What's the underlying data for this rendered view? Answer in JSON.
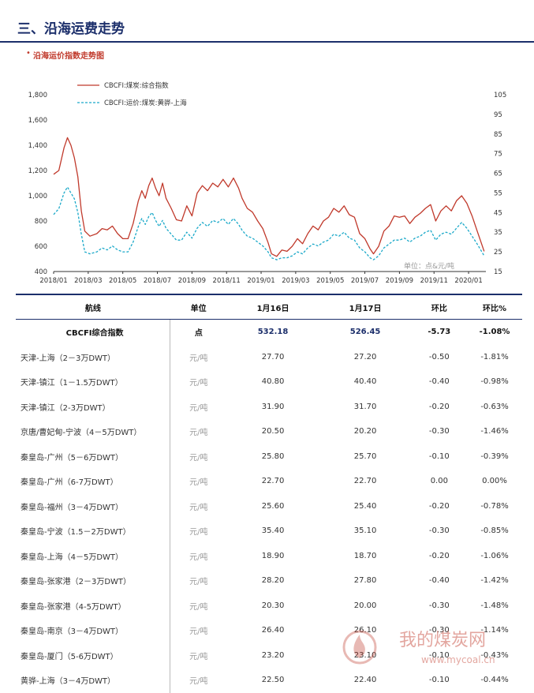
{
  "heading": "三、沿海运费走势",
  "subheading": "沿海运价指数走势图",
  "chart_data": {
    "type": "line",
    "x": [
      "2018/01",
      "2018/03",
      "2018/05",
      "2018/07",
      "2018/09",
      "2018/11",
      "2019/01",
      "2019/03",
      "2019/05",
      "2019/07",
      "2019/09",
      "2019/11",
      "2020/01"
    ],
    "xlim": [
      "2018/01",
      "2020/01"
    ],
    "ylim_left": [
      400,
      1800
    ],
    "yticks_left": [
      "400",
      "600",
      "800",
      "1,000",
      "1,200",
      "1,400",
      "1,600",
      "1,800"
    ],
    "ylim_right": [
      15,
      105
    ],
    "yticks_right": [
      "15",
      "25",
      "35",
      "45",
      "55",
      "65",
      "75",
      "85",
      "95",
      "105"
    ],
    "xticks": [
      "2018/01",
      "2018/03",
      "2018/05",
      "2018/07",
      "2018/09",
      "2018/11",
      "2019/01",
      "2019/03",
      "2019/05",
      "2019/07",
      "2019/09",
      "2019/11",
      "2020/01"
    ],
    "annotation": "单位：点&元/吨",
    "series": [
      {
        "name": "CBCFI:煤炭:综合指数",
        "axis": "left",
        "color": "#c0392b",
        "style": "solid",
        "points": [
          [
            0,
            1170
          ],
          [
            0.3,
            1200
          ],
          [
            0.6,
            1380
          ],
          [
            0.8,
            1460
          ],
          [
            1.0,
            1400
          ],
          [
            1.2,
            1300
          ],
          [
            1.4,
            1150
          ],
          [
            1.6,
            880
          ],
          [
            1.8,
            720
          ],
          [
            2.1,
            680
          ],
          [
            2.5,
            700
          ],
          [
            2.8,
            740
          ],
          [
            3.1,
            730
          ],
          [
            3.4,
            760
          ],
          [
            3.7,
            700
          ],
          [
            4.0,
            660
          ],
          [
            4.3,
            660
          ],
          [
            4.6,
            780
          ],
          [
            4.9,
            960
          ],
          [
            5.1,
            1040
          ],
          [
            5.3,
            980
          ],
          [
            5.5,
            1080
          ],
          [
            5.7,
            1140
          ],
          [
            5.9,
            1060
          ],
          [
            6.1,
            1000
          ],
          [
            6.3,
            1100
          ],
          [
            6.5,
            980
          ],
          [
            6.8,
            900
          ],
          [
            7.1,
            810
          ],
          [
            7.4,
            800
          ],
          [
            7.7,
            920
          ],
          [
            8.0,
            840
          ],
          [
            8.3,
            1020
          ],
          [
            8.6,
            1080
          ],
          [
            8.9,
            1040
          ],
          [
            9.2,
            1100
          ],
          [
            9.5,
            1070
          ],
          [
            9.8,
            1130
          ],
          [
            10.1,
            1070
          ],
          [
            10.4,
            1140
          ],
          [
            10.7,
            1060
          ],
          [
            10.9,
            980
          ],
          [
            11.2,
            900
          ],
          [
            11.5,
            870
          ],
          [
            11.8,
            800
          ],
          [
            12.1,
            740
          ],
          [
            12.4,
            630
          ],
          [
            12.6,
            540
          ],
          [
            12.9,
            520
          ],
          [
            13.2,
            570
          ],
          [
            13.5,
            560
          ],
          [
            13.8,
            600
          ],
          [
            14.1,
            660
          ],
          [
            14.4,
            620
          ],
          [
            14.7,
            700
          ],
          [
            15.0,
            760
          ],
          [
            15.3,
            730
          ],
          [
            15.6,
            800
          ],
          [
            15.9,
            830
          ],
          [
            16.2,
            900
          ],
          [
            16.5,
            870
          ],
          [
            16.8,
            920
          ],
          [
            17.1,
            850
          ],
          [
            17.4,
            830
          ],
          [
            17.7,
            700
          ],
          [
            18.0,
            660
          ],
          [
            18.3,
            580
          ],
          [
            18.5,
            540
          ],
          [
            18.8,
            600
          ],
          [
            19.1,
            720
          ],
          [
            19.4,
            760
          ],
          [
            19.7,
            840
          ],
          [
            20.0,
            830
          ],
          [
            20.3,
            840
          ],
          [
            20.6,
            780
          ],
          [
            20.9,
            830
          ],
          [
            21.2,
            860
          ],
          [
            21.5,
            900
          ],
          [
            21.8,
            930
          ],
          [
            22.1,
            800
          ],
          [
            22.4,
            880
          ],
          [
            22.7,
            920
          ],
          [
            23.0,
            880
          ],
          [
            23.3,
            960
          ],
          [
            23.6,
            1000
          ],
          [
            23.9,
            940
          ],
          [
            24.2,
            840
          ],
          [
            24.5,
            720
          ],
          [
            24.7,
            640
          ],
          [
            24.9,
            560
          ]
        ]
      },
      {
        "name": "CBCFI:运价:煤炭:黄骅-上海",
        "axis": "right",
        "color": "#1ba9c9",
        "style": "dashed",
        "points": [
          [
            0,
            44
          ],
          [
            0.3,
            47
          ],
          [
            0.6,
            55
          ],
          [
            0.8,
            58
          ],
          [
            1.0,
            55
          ],
          [
            1.2,
            52
          ],
          [
            1.4,
            45
          ],
          [
            1.6,
            34
          ],
          [
            1.8,
            25
          ],
          [
            2.1,
            24
          ],
          [
            2.5,
            25
          ],
          [
            2.8,
            27
          ],
          [
            3.1,
            26
          ],
          [
            3.4,
            28
          ],
          [
            3.7,
            26
          ],
          [
            4.0,
            25
          ],
          [
            4.3,
            25
          ],
          [
            4.6,
            30
          ],
          [
            4.9,
            38
          ],
          [
            5.1,
            42
          ],
          [
            5.3,
            39
          ],
          [
            5.5,
            43
          ],
          [
            5.7,
            45
          ],
          [
            5.9,
            41
          ],
          [
            6.1,
            38
          ],
          [
            6.3,
            41
          ],
          [
            6.5,
            37
          ],
          [
            6.8,
            34
          ],
          [
            7.1,
            31
          ],
          [
            7.4,
            31
          ],
          [
            7.7,
            35
          ],
          [
            8.0,
            32
          ],
          [
            8.3,
            37
          ],
          [
            8.6,
            40
          ],
          [
            8.9,
            38
          ],
          [
            9.2,
            41
          ],
          [
            9.5,
            40
          ],
          [
            9.8,
            42
          ],
          [
            10.1,
            39
          ],
          [
            10.4,
            42
          ],
          [
            10.7,
            39
          ],
          [
            10.9,
            36
          ],
          [
            11.2,
            33
          ],
          [
            11.5,
            32
          ],
          [
            11.8,
            30
          ],
          [
            12.1,
            28
          ],
          [
            12.4,
            25
          ],
          [
            12.6,
            22
          ],
          [
            12.9,
            21
          ],
          [
            13.2,
            22
          ],
          [
            13.5,
            22
          ],
          [
            13.8,
            23
          ],
          [
            14.1,
            25
          ],
          [
            14.4,
            24
          ],
          [
            14.7,
            27
          ],
          [
            15.0,
            29
          ],
          [
            15.3,
            28
          ],
          [
            15.6,
            30
          ],
          [
            15.9,
            31
          ],
          [
            16.2,
            34
          ],
          [
            16.5,
            33
          ],
          [
            16.8,
            35
          ],
          [
            17.1,
            32
          ],
          [
            17.4,
            31
          ],
          [
            17.7,
            27
          ],
          [
            18.0,
            25
          ],
          [
            18.3,
            22
          ],
          [
            18.5,
            21
          ],
          [
            18.8,
            23
          ],
          [
            19.1,
            27
          ],
          [
            19.4,
            29
          ],
          [
            19.7,
            31
          ],
          [
            20.0,
            31
          ],
          [
            20.3,
            32
          ],
          [
            20.6,
            30
          ],
          [
            20.9,
            32
          ],
          [
            21.2,
            33
          ],
          [
            21.5,
            35
          ],
          [
            21.8,
            36
          ],
          [
            22.1,
            31
          ],
          [
            22.4,
            34
          ],
          [
            22.7,
            35
          ],
          [
            23.0,
            34
          ],
          [
            23.3,
            37
          ],
          [
            23.6,
            40
          ],
          [
            23.9,
            37
          ],
          [
            24.2,
            33
          ],
          [
            24.5,
            29
          ],
          [
            24.7,
            26
          ],
          [
            24.9,
            23
          ]
        ]
      }
    ]
  },
  "table": {
    "headers": [
      "航线",
      "单位",
      "1月16日",
      "1月17日",
      "环比",
      "环比%"
    ],
    "rows": [
      [
        "CBCFI综合指数",
        "点",
        "532.18",
        "526.45",
        "-5.73",
        "-1.08%"
      ],
      [
        "天津-上海（2－3万DWT）",
        "元/吨",
        "27.70",
        "27.20",
        "-0.50",
        "-1.81%"
      ],
      [
        "天津-镇江（1－1.5万DWT）",
        "元/吨",
        "40.80",
        "40.40",
        "-0.40",
        "-0.98%"
      ],
      [
        "天津-镇江（2-3万DWT）",
        "元/吨",
        "31.90",
        "31.70",
        "-0.20",
        "-0.63%"
      ],
      [
        "京唐/曹妃甸-宁波（4－5万DWT）",
        "元/吨",
        "20.50",
        "20.20",
        "-0.30",
        "-1.46%"
      ],
      [
        "秦皇岛-广州（5－6万DWT）",
        "元/吨",
        "25.80",
        "25.70",
        "-0.10",
        "-0.39%"
      ],
      [
        "秦皇岛-广州（6-7万DWT）",
        "元/吨",
        "22.70",
        "22.70",
        "0.00",
        "0.00%"
      ],
      [
        "秦皇岛-福州（3－4万DWT）",
        "元/吨",
        "25.60",
        "25.40",
        "-0.20",
        "-0.78%"
      ],
      [
        "秦皇岛-宁波（1.5－2万DWT）",
        "元/吨",
        "35.40",
        "35.10",
        "-0.30",
        "-0.85%"
      ],
      [
        "秦皇岛-上海（4－5万DWT）",
        "元/吨",
        "18.90",
        "18.70",
        "-0.20",
        "-1.06%"
      ],
      [
        "秦皇岛-张家港（2－3万DWT）",
        "元/吨",
        "28.20",
        "27.80",
        "-0.40",
        "-1.42%"
      ],
      [
        "秦皇岛-张家港（4-5万DWT）",
        "元/吨",
        "20.30",
        "20.00",
        "-0.30",
        "-1.48%"
      ],
      [
        "秦皇岛-南京（3－4万DWT）",
        "元/吨",
        "26.40",
        "26.10",
        "-0.30",
        "-1.14%"
      ],
      [
        "秦皇岛-厦门（5-6万DWT）",
        "元/吨",
        "23.20",
        "23.10",
        "-0.10",
        "-0.43%"
      ],
      [
        "黄骅-上海（3－4万DWT）",
        "元/吨",
        "22.50",
        "22.40",
        "-0.10",
        "-0.44%"
      ]
    ]
  },
  "watermark": {
    "text": "我的煤炭网",
    "url": "www.mycoal.cn"
  }
}
